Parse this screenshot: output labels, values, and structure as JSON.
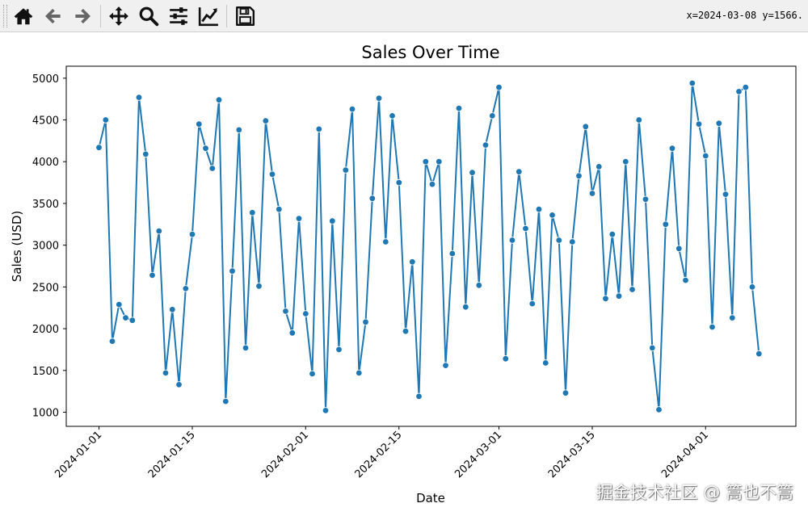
{
  "toolbar": {
    "buttons": [
      {
        "name": "home-icon"
      },
      {
        "name": "back-icon"
      },
      {
        "name": "forward-icon"
      },
      {
        "name": "pan-icon"
      },
      {
        "name": "zoom-icon"
      },
      {
        "name": "configure-subplots-icon"
      },
      {
        "name": "edit-axes-icon"
      },
      {
        "name": "save-icon"
      }
    ],
    "coordinates": "x=2024-03-08 y=1566."
  },
  "watermark": "掘金技术社区 @ 篙也不篙",
  "colors": {
    "line": "#1f77b4",
    "toolbar_bg": "#f0f0f0"
  },
  "chart_data": {
    "type": "line",
    "title": "Sales Over Time",
    "xlabel": "Date",
    "ylabel": "Sales (USD)",
    "x_start": "2024-01-01",
    "x_step_days": 1,
    "xticks": [
      "2024-01-01",
      "2024-01-15",
      "2024-02-01",
      "2024-02-15",
      "2024-03-01",
      "2024-03-15",
      "2024-04-01"
    ],
    "yticks": [
      1000,
      1500,
      2000,
      2500,
      3000,
      3500,
      4000,
      4500,
      5000
    ],
    "grid": false,
    "marker": "circle",
    "series": [
      {
        "values": [
          4170,
          4500,
          1850,
          2290,
          2130,
          2100,
          4770,
          4090,
          2640,
          3170,
          1470,
          2230,
          1330,
          2480,
          3130,
          4450,
          4160,
          3920,
          4740,
          1130,
          2690,
          4380,
          1770,
          3390,
          2510,
          4490,
          3850,
          3430,
          2210,
          1950,
          3320,
          2180,
          1460,
          4390,
          1020,
          3290,
          1750,
          3900,
          4630,
          1470,
          2080,
          3560,
          4760,
          3040,
          4550,
          3750,
          1970,
          2800,
          1190,
          4000,
          3730,
          4000,
          1560,
          2900,
          4640,
          2260,
          3870,
          2520,
          4200,
          4550,
          4890,
          1640,
          3060,
          3880,
          3200,
          2300,
          3430,
          1590,
          3360,
          3060,
          1230,
          3040,
          3830,
          4420,
          3620,
          3940,
          2360,
          3130,
          2390,
          4000,
          2470,
          4500,
          3550,
          1770,
          1030,
          3250,
          4160,
          2960,
          2580,
          4940,
          4450,
          4070,
          2020,
          4460,
          3610,
          2130,
          4840,
          4890,
          2500,
          1700
        ]
      }
    ]
  }
}
